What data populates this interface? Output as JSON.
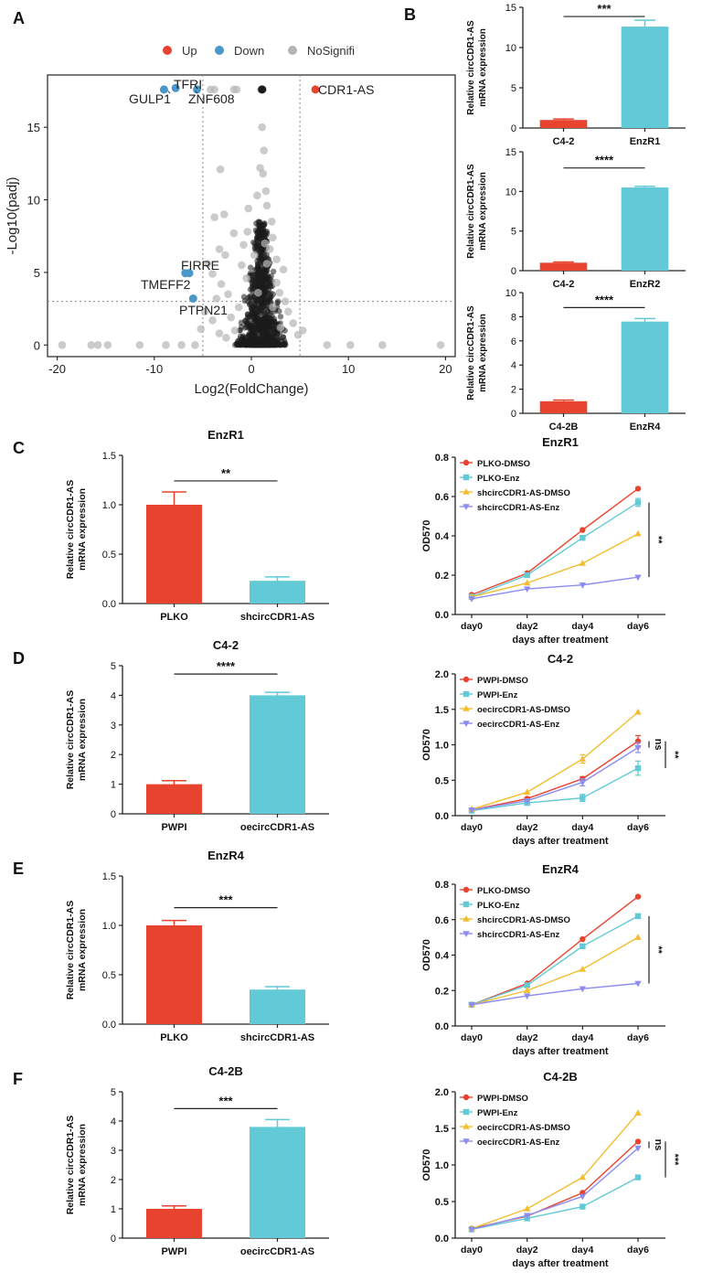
{
  "colors": {
    "red": "#e8432f",
    "cyan": "#62c9d6",
    "yellow": "#f2bd2e",
    "blue": "#8d8cf0",
    "up": "#e8432f",
    "down": "#4a97c9",
    "nosig": "#b5b5b5",
    "black": "#111111"
  },
  "chart_data": [
    {
      "panel": "A",
      "type": "scatter",
      "title": "",
      "xlabel": "Log2(FoldChange)",
      "ylabel": "-Log10(padj)",
      "xlim": [
        -21,
        21
      ],
      "ylim": [
        -0.8,
        18.6
      ],
      "xticks": [
        -20,
        -10,
        0,
        10,
        20
      ],
      "yticks": [
        0,
        5,
        10,
        15
      ],
      "thresholds": {
        "x": [
          -5,
          5
        ],
        "y": 3
      },
      "legend": [
        {
          "name": "Up",
          "color": "#e8432f"
        },
        {
          "name": "Down",
          "color": "#4a97c9"
        },
        {
          "name": "NoSignifi",
          "color": "#b5b5b5"
        }
      ],
      "labels": [
        {
          "text": "TFRI",
          "x": -7.2,
          "y": 17.6
        },
        {
          "text": "GULP1",
          "x": -9.0,
          "y": 17.6
        },
        {
          "text": "ZNF608",
          "x": -5.6,
          "y": 17.6
        },
        {
          "text": "CDR1-AS",
          "x": 6.6,
          "y": 17.6
        },
        {
          "text": "FIRRE",
          "x": -6.8,
          "y": 4.9
        },
        {
          "text": "TMEFF2",
          "x": -6.6,
          "y": 4.9
        },
        {
          "text": "PTPN21",
          "x": -6.0,
          "y": 3.2
        }
      ],
      "up": [
        [
          6.6,
          17.6
        ]
      ],
      "down": [
        [
          -9.0,
          17.6
        ],
        [
          -7.8,
          17.7
        ],
        [
          -5.6,
          17.6
        ],
        [
          -6.8,
          4.95
        ],
        [
          -6.4,
          4.95
        ],
        [
          -6.0,
          3.2
        ]
      ],
      "nosig_sparse": [
        [
          -19.5,
          0
        ],
        [
          -16.5,
          0
        ],
        [
          -15.8,
          0
        ],
        [
          -14.8,
          0
        ],
        [
          -11.5,
          0
        ],
        [
          -8.8,
          0
        ],
        [
          -7.2,
          0
        ],
        [
          -5.8,
          0
        ],
        [
          7.8,
          0
        ],
        [
          10.2,
          0
        ],
        [
          13.5,
          0
        ],
        [
          19.5,
          0
        ],
        [
          -4.2,
          17.6
        ],
        [
          -3.8,
          17.6
        ],
        [
          -1.8,
          17.6
        ],
        [
          -1.5,
          17.6
        ],
        [
          1.0,
          17.6
        ],
        [
          1.2,
          17.6
        ],
        [
          1.1,
          15.0
        ],
        [
          1.3,
          13.4
        ],
        [
          0.9,
          12.2
        ],
        [
          1.2,
          11.8
        ],
        [
          1.5,
          10.6
        ],
        [
          1.6,
          9.6
        ],
        [
          -0.3,
          9.4
        ],
        [
          -3.2,
          12.1
        ],
        [
          -2.8,
          9.0
        ],
        [
          -3.8,
          8.8
        ],
        [
          -3.3,
          6.6
        ],
        [
          -1.8,
          7.7
        ],
        [
          -2.7,
          6.2
        ],
        [
          -0.8,
          6.9
        ],
        [
          2.1,
          8.5
        ],
        [
          2.2,
          7.4
        ],
        [
          1.9,
          6.6
        ],
        [
          2.6,
          5.9
        ],
        [
          3.3,
          5.2
        ],
        [
          2.6,
          4.3
        ],
        [
          3.5,
          3.0
        ],
        [
          -4.5,
          5.6
        ],
        [
          -4.0,
          4.9
        ],
        [
          -3.1,
          4.2
        ],
        [
          -2.4,
          3.5
        ],
        [
          -3.6,
          3.2
        ],
        [
          -4.8,
          2.3
        ],
        [
          -4.0,
          1.7
        ],
        [
          -3.3,
          0.8
        ],
        [
          -2.1,
          1.9
        ],
        [
          -1.3,
          2.6
        ],
        [
          0.7,
          3.6
        ],
        [
          3.8,
          2.3
        ],
        [
          4.3,
          1.5
        ],
        [
          4.8,
          0.7
        ],
        [
          0.6,
          10.3
        ],
        [
          -1.0,
          5.5
        ],
        [
          -0.5,
          4.6
        ],
        [
          1.6,
          5.6
        ],
        [
          2.9,
          3.6
        ],
        [
          -5.2,
          1.1
        ],
        [
          5.3,
          1.0
        ],
        [
          -2.6,
          0.5
        ],
        [
          3.0,
          1.2
        ],
        [
          -1.7,
          1.0
        ],
        [
          2.2,
          2.6
        ],
        [
          -0.4,
          7.8
        ],
        [
          0.3,
          6.2
        ],
        [
          1.4,
          7.0
        ]
      ]
    },
    {
      "panel": "B1",
      "type": "bar",
      "categories": [
        "C4-2",
        "EnzR1"
      ],
      "values": [
        1.0,
        12.6
      ],
      "errors": [
        0.12,
        0.8
      ],
      "ylabel": "Relative circCDR1-AS mRNA expression",
      "ylim": [
        0,
        15
      ],
      "yticks": [
        0,
        5,
        10,
        15
      ],
      "significance": "***"
    },
    {
      "panel": "B2",
      "type": "bar",
      "categories": [
        "C4-2",
        "EnzR2"
      ],
      "values": [
        1.0,
        10.5
      ],
      "errors": [
        0.1,
        0.15
      ],
      "ylabel": "Relative circCDR1-AS mRNA expression",
      "ylim": [
        0,
        15
      ],
      "yticks": [
        0,
        5,
        10,
        15
      ],
      "significance": "****"
    },
    {
      "panel": "B3",
      "type": "bar",
      "categories": [
        "C4-2B",
        "EnzR4"
      ],
      "values": [
        1.0,
        7.6
      ],
      "errors": [
        0.1,
        0.25
      ],
      "ylabel": "Relative circCDR1-AS mRNA expression",
      "ylim": [
        0,
        10
      ],
      "yticks": [
        0,
        2,
        4,
        6,
        8,
        10
      ],
      "significance": "****"
    },
    {
      "panel": "C-bar",
      "type": "bar",
      "title": "EnzR1",
      "categories": [
        "PLKO",
        "shcircCDR1-AS"
      ],
      "values": [
        1.0,
        0.23
      ],
      "errors": [
        0.13,
        0.04
      ],
      "ylabel": "Relative circCDR1-AS mRNA expression",
      "ylim": [
        0,
        1.5
      ],
      "yticks": [
        0.0,
        0.5,
        1.0,
        1.5
      ],
      "significance": "**"
    },
    {
      "panel": "C-line",
      "type": "line",
      "title": "EnzR1",
      "x": [
        "day0",
        "day2",
        "day4",
        "day6"
      ],
      "xlabel": "days after treatment",
      "ylabel": "OD570",
      "ylim": [
        0.0,
        0.8
      ],
      "yticks": [
        0.0,
        0.2,
        0.4,
        0.6,
        0.8
      ],
      "legend_position": "top-left",
      "series": [
        {
          "name": "PLKO-DMSO",
          "color": "#e8432f",
          "values": [
            0.1,
            0.21,
            0.43,
            0.64
          ],
          "errors": [
            0,
            0,
            0,
            0
          ]
        },
        {
          "name": "PLKO-Enz",
          "color": "#62c9d6",
          "values": [
            0.09,
            0.2,
            0.39,
            0.57
          ],
          "errors": [
            0,
            0,
            0,
            0.02
          ]
        },
        {
          "name": "shcircCDR1-AS-DMSO",
          "color": "#f2bd2e",
          "values": [
            0.09,
            0.16,
            0.26,
            0.41
          ],
          "errors": [
            0,
            0,
            0,
            0
          ]
        },
        {
          "name": "shcircCDR1-AS-Enz",
          "color": "#8d8cf0",
          "values": [
            0.08,
            0.13,
            0.15,
            0.19
          ],
          "errors": [
            0,
            0,
            0,
            0
          ]
        }
      ],
      "significance": [
        {
          "label": "**",
          "from": 0.19,
          "to": 0.57
        }
      ]
    },
    {
      "panel": "D-bar",
      "type": "bar",
      "title": "C4-2",
      "categories": [
        "PWPI",
        "oecircCDR1-AS"
      ],
      "values": [
        1.0,
        4.0
      ],
      "errors": [
        0.12,
        0.1
      ],
      "ylabel": "Relative circCDR1-AS mRNA expression",
      "ylim": [
        0,
        5
      ],
      "yticks": [
        0,
        1,
        2,
        3,
        4,
        5
      ],
      "significance": "****"
    },
    {
      "panel": "D-line",
      "type": "line",
      "title": "C4-2",
      "x": [
        "day0",
        "day2",
        "day4",
        "day6"
      ],
      "xlabel": "days after treatment",
      "ylabel": "OD570",
      "ylim": [
        0.0,
        2.0
      ],
      "yticks": [
        0.0,
        0.5,
        1.0,
        1.5,
        2.0
      ],
      "legend_position": "top-left",
      "series": [
        {
          "name": "PWPI-DMSO",
          "color": "#e8432f",
          "values": [
            0.08,
            0.24,
            0.52,
            1.05
          ],
          "errors": [
            0,
            0,
            0.03,
            0.08
          ]
        },
        {
          "name": "PWPI-Enz",
          "color": "#62c9d6",
          "values": [
            0.07,
            0.18,
            0.25,
            0.67
          ],
          "errors": [
            0,
            0,
            0.05,
            0.1
          ]
        },
        {
          "name": "oecircCDR1-AS-DMSO",
          "color": "#f2bd2e",
          "values": [
            0.09,
            0.33,
            0.8,
            1.46
          ],
          "errors": [
            0,
            0,
            0.06,
            0
          ]
        },
        {
          "name": "oecircCDR1-AS-Enz",
          "color": "#8d8cf0",
          "values": [
            0.08,
            0.21,
            0.47,
            0.96
          ],
          "errors": [
            0,
            0,
            0.05,
            0.07
          ]
        }
      ],
      "significance": [
        {
          "label": "ns",
          "from": 0.96,
          "to": 1.05
        },
        {
          "label": "**",
          "from": 0.67,
          "to": 1.05
        }
      ]
    },
    {
      "panel": "E-bar",
      "type": "bar",
      "title": "EnzR4",
      "categories": [
        "PLKO",
        "shcircCDR1-AS"
      ],
      "values": [
        1.0,
        0.35
      ],
      "errors": [
        0.05,
        0.03
      ],
      "ylabel": "Relative circCDR1-AS mRNA expression",
      "ylim": [
        0,
        1.5
      ],
      "yticks": [
        0.0,
        0.5,
        1.0,
        1.5
      ],
      "significance": "***"
    },
    {
      "panel": "E-line",
      "type": "line",
      "title": "EnzR4",
      "x": [
        "day0",
        "day2",
        "day4",
        "day6"
      ],
      "xlabel": "days after treatment",
      "ylabel": "OD570",
      "ylim": [
        0.0,
        0.8
      ],
      "yticks": [
        0.0,
        0.2,
        0.4,
        0.6,
        0.8
      ],
      "legend_position": "top-left",
      "series": [
        {
          "name": "PLKO-DMSO",
          "color": "#e8432f",
          "values": [
            0.12,
            0.24,
            0.49,
            0.73
          ],
          "errors": [
            0,
            0,
            0,
            0
          ]
        },
        {
          "name": "PLKO-Enz",
          "color": "#62c9d6",
          "values": [
            0.12,
            0.23,
            0.45,
            0.62
          ],
          "errors": [
            0,
            0,
            0,
            0
          ]
        },
        {
          "name": "shcircCDR1-AS-DMSO",
          "color": "#f2bd2e",
          "values": [
            0.12,
            0.2,
            0.32,
            0.5
          ],
          "errors": [
            0,
            0,
            0,
            0
          ]
        },
        {
          "name": "shcircCDR1-AS-Enz",
          "color": "#8d8cf0",
          "values": [
            0.12,
            0.17,
            0.21,
            0.24
          ],
          "errors": [
            0,
            0,
            0,
            0
          ]
        }
      ],
      "significance": [
        {
          "label": "**",
          "from": 0.24,
          "to": 0.62
        }
      ]
    },
    {
      "panel": "F-bar",
      "type": "bar",
      "title": "C4-2B",
      "categories": [
        "PWPI",
        "oecircCDR1-AS"
      ],
      "values": [
        1.0,
        3.8
      ],
      "errors": [
        0.1,
        0.25
      ],
      "ylabel": "Relative circCDR1-AS mRNA expression",
      "ylim": [
        0,
        5
      ],
      "yticks": [
        0,
        1,
        2,
        3,
        4,
        5
      ],
      "significance": "***"
    },
    {
      "panel": "F-line",
      "type": "line",
      "title": "C4-2B",
      "x": [
        "day0",
        "day2",
        "day4",
        "day6"
      ],
      "xlabel": "days after treatment",
      "ylabel": "OD570",
      "ylim": [
        0.0,
        2.0
      ],
      "yticks": [
        0.0,
        0.5,
        1.0,
        1.5,
        2.0
      ],
      "legend_position": "top-left",
      "series": [
        {
          "name": "PWPI-DMSO",
          "color": "#e8432f",
          "values": [
            0.13,
            0.3,
            0.62,
            1.32
          ],
          "errors": [
            0,
            0,
            0,
            0
          ]
        },
        {
          "name": "PWPI-Enz",
          "color": "#62c9d6",
          "values": [
            0.12,
            0.27,
            0.43,
            0.83
          ],
          "errors": [
            0,
            0,
            0,
            0
          ]
        },
        {
          "name": "oecircCDR1-AS-DMSO",
          "color": "#f2bd2e",
          "values": [
            0.13,
            0.4,
            0.83,
            1.71
          ],
          "errors": [
            0,
            0,
            0,
            0
          ]
        },
        {
          "name": "oecircCDR1-AS-Enz",
          "color": "#8d8cf0",
          "values": [
            0.12,
            0.31,
            0.57,
            1.23
          ],
          "errors": [
            0,
            0,
            0,
            0
          ]
        }
      ],
      "significance": [
        {
          "label": "ns",
          "from": 1.23,
          "to": 1.32
        },
        {
          "label": "***",
          "from": 0.83,
          "to": 1.32
        }
      ]
    }
  ],
  "panel_letters": [
    "A",
    "B",
    "C",
    "D",
    "E",
    "F"
  ]
}
